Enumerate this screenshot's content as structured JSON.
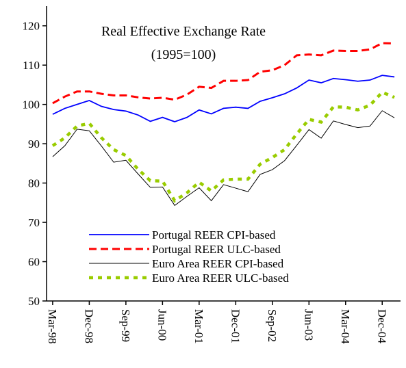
{
  "chart_data": {
    "type": "line",
    "title": "Real Effective Exchange Rate",
    "subtitle": "(1995=100)",
    "categories": [
      "Mar-98",
      null,
      null,
      "Dec-98",
      null,
      null,
      "Sep-99",
      null,
      null,
      "Jun-00",
      null,
      null,
      "Mar-01",
      null,
      null,
      "Dec-01",
      null,
      null,
      "Sep-02",
      null,
      null,
      "Jun-03",
      null,
      null,
      "Mar-04",
      null,
      null,
      "Dec-04",
      null
    ],
    "series": [
      {
        "name": "Portugal REER CPI-based",
        "color": "#0000ff",
        "style": "solid",
        "values": [
          97.5,
          99,
          100,
          101,
          99.5,
          98.7,
          98.3,
          97.3,
          95.7,
          96.7,
          95.6,
          96.7,
          98.6,
          97.6,
          99,
          99.3,
          99,
          100.8,
          101.7,
          102.7,
          104.2,
          106.2,
          105.5,
          106.6,
          106.3,
          105.9,
          106.2,
          107.4,
          107
        ]
      },
      {
        "name": "Portugal REER ULC-based",
        "color": "#ff0000",
        "style": "dashed",
        "values": [
          100.3,
          102,
          103.3,
          103.3,
          102.7,
          102.3,
          102.3,
          101.8,
          101.5,
          101.7,
          101.2,
          102.5,
          104.5,
          104.2,
          106,
          106,
          106.2,
          108.3,
          108.7,
          110,
          112.5,
          112.7,
          112.5,
          113.7,
          113.6,
          113.6,
          114,
          115.6,
          115.5
        ]
      },
      {
        "name": "Euro Area REER CPI-based",
        "color": "#000000",
        "style": "thin",
        "values": [
          86.7,
          89.5,
          93.7,
          93.3,
          89.4,
          85.3,
          85.8,
          82.3,
          78.9,
          79,
          74.3,
          76.6,
          78.8,
          75.5,
          79.6,
          78.7,
          77.8,
          82.2,
          83.4,
          85.7,
          89.6,
          93.6,
          91.4,
          95.8,
          94.9,
          94.1,
          94.5,
          98.4,
          96.6
        ]
      },
      {
        "name": "Euro Area REER ULC-based",
        "color": "#99cc00",
        "style": "dotted",
        "values": [
          89.5,
          91.5,
          94.5,
          95.2,
          91.5,
          88.5,
          87,
          83.5,
          80.6,
          80.5,
          75.5,
          77.5,
          80.2,
          78,
          80.8,
          81,
          81,
          84.8,
          86.5,
          88.5,
          92.5,
          96.2,
          95.5,
          99.4,
          99.3,
          98.6,
          99.8,
          103.1,
          101.8
        ]
      }
    ],
    "ylim": [
      50,
      125
    ],
    "yticks": [
      50,
      60,
      70,
      80,
      90,
      100,
      110,
      120
    ],
    "grid": false,
    "legend": "lower-left"
  }
}
